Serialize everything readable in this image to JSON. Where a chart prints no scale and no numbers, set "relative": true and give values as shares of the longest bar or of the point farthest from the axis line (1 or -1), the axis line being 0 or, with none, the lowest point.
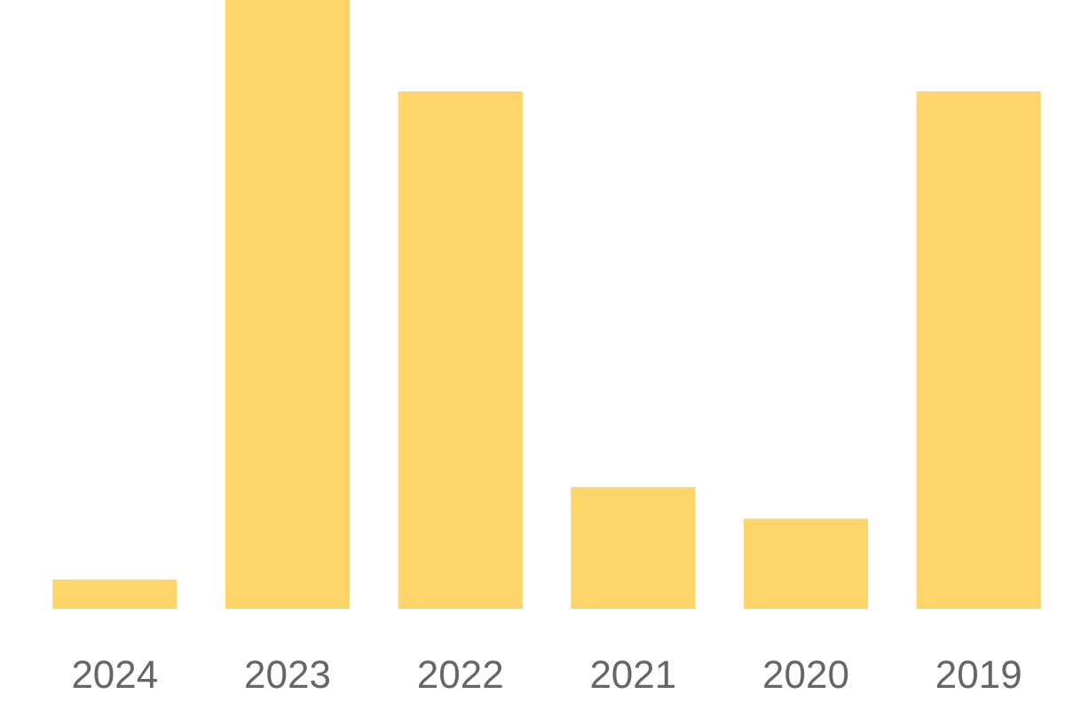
{
  "chart_data": {
    "type": "bar",
    "relative": true,
    "color": "#fed56b",
    "categories": [
      "2024",
      "2023",
      "2022",
      "2021",
      "2020",
      "2019"
    ],
    "values": [
      0.048,
      1,
      0.85,
      0.2,
      0.148,
      0.85
    ]
  }
}
